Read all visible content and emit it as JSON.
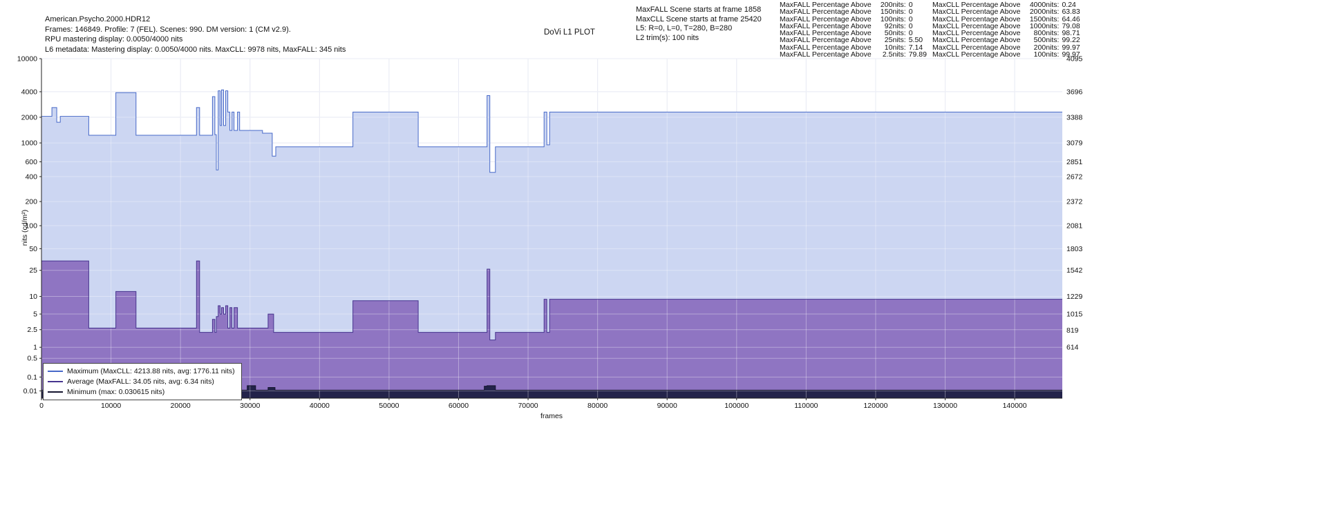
{
  "header": {
    "line1": "American.Psycho.2000.HDR12",
    "line2": "Frames: 146849. Profile: 7 (FEL). Scenes: 990. DM version: 1 (CM v2.9).",
    "line3": "RPU mastering display: 0.0050/4000 nits",
    "line4": "L6 metadata: Mastering display: 0.0050/4000 nits. MaxCLL: 9978 nits, MaxFALL: 345 nits"
  },
  "plot_title": "DoVi L1 PLOT",
  "scene_info": [
    "MaxFALL Scene starts at frame 1858",
    "MaxCLL Scene starts at frame 25420",
    "L5: R=0, L=0, T=280, B=280",
    "L2 trim(s): 100 nits"
  ],
  "maxfall_percentages": {
    "prefix": "MaxFALL Percentage Above",
    "rows": [
      {
        "thr": "200nits:",
        "val": "0"
      },
      {
        "thr": "150nits:",
        "val": "0"
      },
      {
        "thr": "100nits:",
        "val": "0"
      },
      {
        "thr": "92nits:",
        "val": "0"
      },
      {
        "thr": "50nits:",
        "val": "0"
      },
      {
        "thr": "25nits:",
        "val": "5.50"
      },
      {
        "thr": "10nits:",
        "val": "7.14"
      },
      {
        "thr": "2.5nits:",
        "val": "79.89"
      }
    ]
  },
  "maxcll_percentages": {
    "prefix": "MaxCLL Percentage Above",
    "rows": [
      {
        "thr": "4000nits:",
        "val": "0.24"
      },
      {
        "thr": "2000nits:",
        "val": "63.83"
      },
      {
        "thr": "1500nits:",
        "val": "64.46"
      },
      {
        "thr": "1000nits:",
        "val": "79.08"
      },
      {
        "thr": "800nits:",
        "val": "98.71"
      },
      {
        "thr": "500nits:",
        "val": "99.22"
      },
      {
        "thr": "200nits:",
        "val": "99.97"
      },
      {
        "thr": "100nits:",
        "val": "99.97"
      }
    ]
  },
  "chart_data": {
    "type": "area",
    "title": "DoVi L1 PLOT",
    "xlabel": "frames",
    "ylabel": "nits (cd/m²)",
    "x_range": [
      0,
      146849
    ],
    "x_ticks": [
      0,
      10000,
      20000,
      30000,
      40000,
      50000,
      60000,
      70000,
      80000,
      90000,
      100000,
      110000,
      120000,
      130000,
      140000
    ],
    "y_scale": "PQ (SMPTE ST 2084); left axis nits, right axis 12-bit PQ code",
    "left_ticks": [
      10000,
      4000,
      2000,
      1000,
      600,
      400,
      200,
      100,
      50,
      25,
      10,
      5,
      2.5,
      1,
      0.5,
      0.1,
      0.01
    ],
    "right_ticks": [
      4095,
      3696,
      3388,
      3079,
      2851,
      2672,
      2372,
      2081,
      1803,
      1542,
      1229,
      1015,
      819,
      614
    ],
    "colors": {
      "grid": "#dde0ee",
      "axis": "#222222"
    },
    "series": [
      {
        "name": "Maximum",
        "legend": "Maximum (MaxCLL: 4213.88 nits, avg: 1776.11 nits)",
        "line_color": "#4668c8",
        "fill_color": "#ccd6f2",
        "fill_opacity": 1,
        "steps": [
          [
            0,
            2048
          ],
          [
            1500,
            2600
          ],
          [
            2200,
            1750
          ],
          [
            2700,
            2048
          ],
          [
            6800,
            1229
          ],
          [
            10700,
            3900
          ],
          [
            13600,
            1229
          ],
          [
            22300,
            2600
          ],
          [
            22750,
            1229
          ],
          [
            24600,
            3500
          ],
          [
            24950,
            1250
          ],
          [
            25150,
            480
          ],
          [
            25420,
            4100
          ],
          [
            25700,
            1600
          ],
          [
            25900,
            4213.88
          ],
          [
            26200,
            1600
          ],
          [
            26500,
            4100
          ],
          [
            26800,
            2300
          ],
          [
            27100,
            1400
          ],
          [
            27400,
            2300
          ],
          [
            27700,
            1400
          ],
          [
            28200,
            2300
          ],
          [
            28500,
            1400
          ],
          [
            31800,
            1300
          ],
          [
            33200,
            700
          ],
          [
            33700,
            900
          ],
          [
            44800,
            2300
          ],
          [
            54200,
            900
          ],
          [
            64100,
            3600
          ],
          [
            64500,
            450
          ],
          [
            65300,
            900
          ],
          [
            72300,
            2300
          ],
          [
            72700,
            950
          ],
          [
            73100,
            2300
          ],
          [
            146849,
            2300
          ]
        ]
      },
      {
        "name": "Average",
        "legend": "Average (MaxFALL: 34.05 nits, avg: 6.34 nits)",
        "line_color": "#46348e",
        "fill_color": "#8a6cbe",
        "fill_opacity": 0.92,
        "steps": [
          [
            0,
            34
          ],
          [
            6800,
            2.7
          ],
          [
            10700,
            12
          ],
          [
            13600,
            2.7
          ],
          [
            22300,
            34
          ],
          [
            22750,
            2.2
          ],
          [
            24600,
            4
          ],
          [
            24950,
            2.2
          ],
          [
            25150,
            4.5
          ],
          [
            25420,
            7
          ],
          [
            25700,
            5
          ],
          [
            25900,
            6.5
          ],
          [
            26200,
            5
          ],
          [
            26500,
            7
          ],
          [
            26800,
            2.7
          ],
          [
            27100,
            6.5
          ],
          [
            27400,
            2.7
          ],
          [
            27700,
            6.5
          ],
          [
            28200,
            2.7
          ],
          [
            32600,
            5
          ],
          [
            33400,
            2.2
          ],
          [
            44800,
            8.5
          ],
          [
            54200,
            2.2
          ],
          [
            64100,
            26
          ],
          [
            64500,
            1.5
          ],
          [
            65300,
            2.2
          ],
          [
            72300,
            9
          ],
          [
            72700,
            2.2
          ],
          [
            73100,
            9
          ],
          [
            146849,
            9
          ]
        ]
      },
      {
        "name": "Minimum",
        "legend": "Minimum (max: 0.030615 nits)",
        "line_color": "#14142e",
        "fill_color": "#23234a",
        "fill_opacity": 1,
        "steps": [
          [
            0,
            0.012
          ],
          [
            26800,
            0.018
          ],
          [
            28500,
            0.012
          ],
          [
            29600,
            0.0306
          ],
          [
            30800,
            0.012
          ],
          [
            32600,
            0.022
          ],
          [
            33600,
            0.012
          ],
          [
            63700,
            0.028
          ],
          [
            64100,
            0.030615
          ],
          [
            65300,
            0.012
          ],
          [
            146849,
            0.012
          ]
        ]
      }
    ]
  }
}
